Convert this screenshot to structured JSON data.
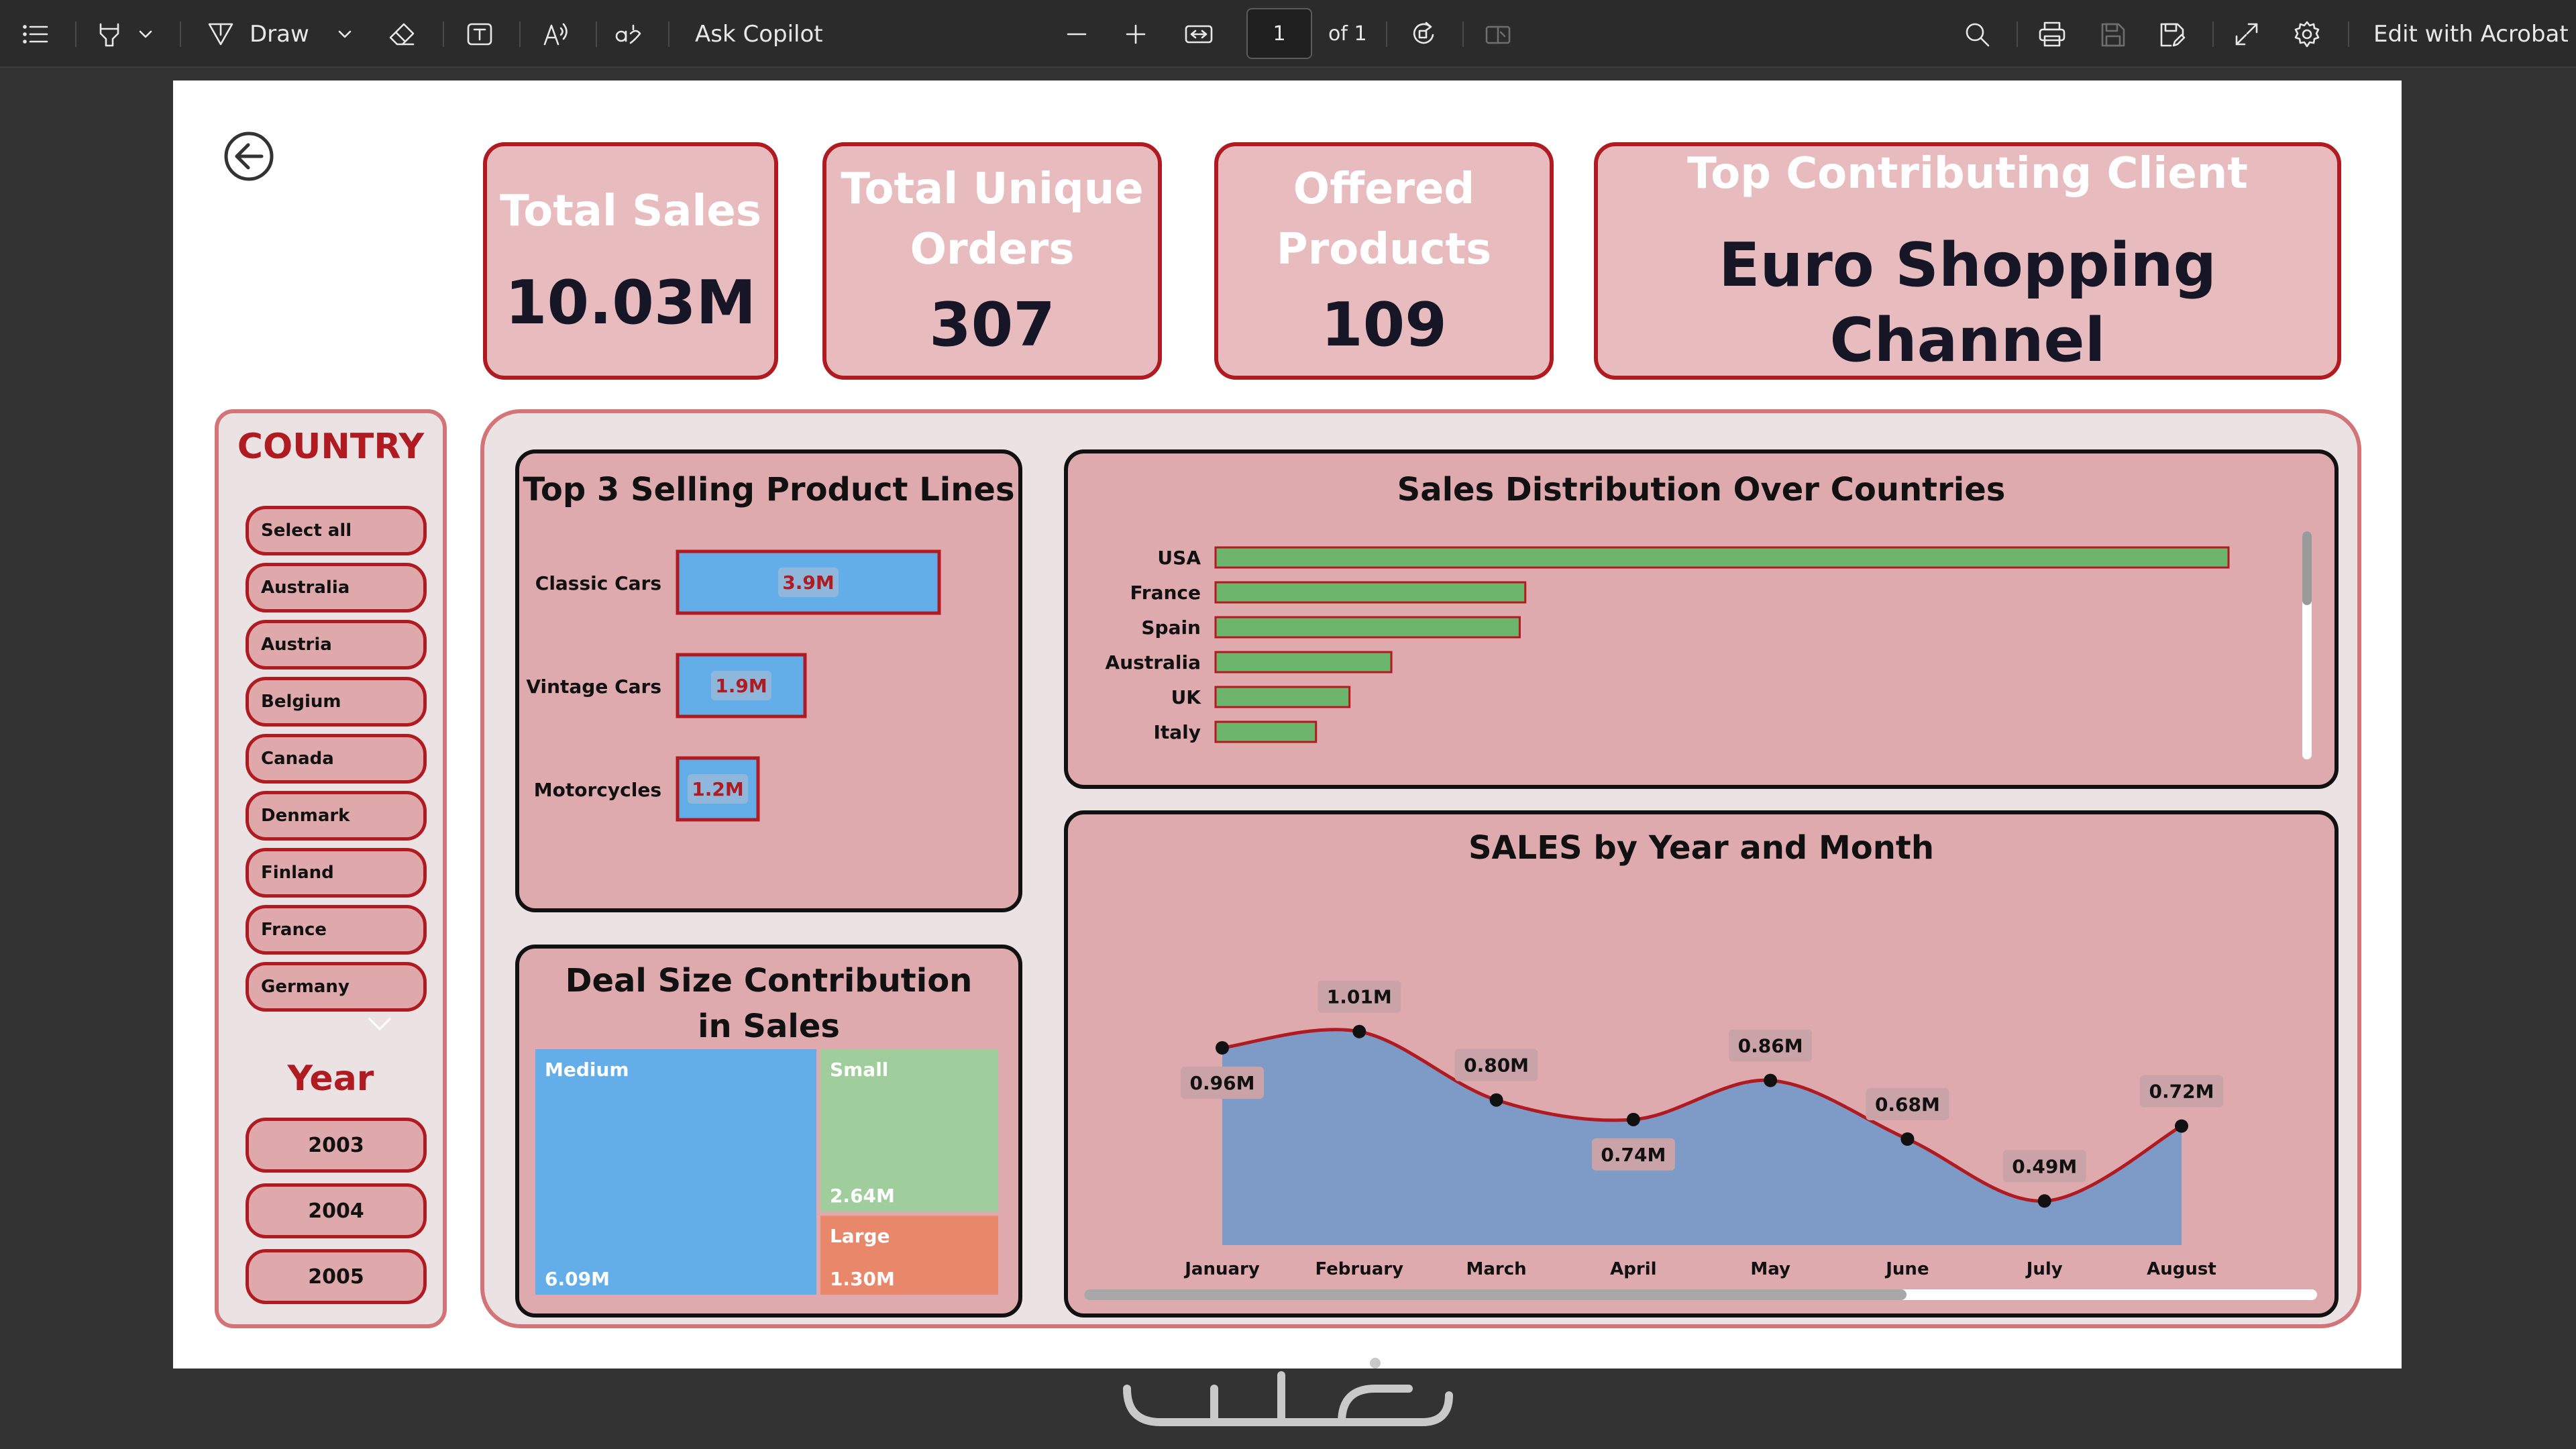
{
  "toolbar": {
    "draw_label": "Draw",
    "copilot_label": "Ask Copilot",
    "page_number": "1",
    "page_of": "of 1",
    "edit_label": "Edit with Acrobat"
  },
  "kpis": {
    "total_sales": {
      "label": "Total Sales",
      "value": "10.03M"
    },
    "unique_orders": {
      "label": "Total Unique Orders",
      "value": "307"
    },
    "offered_products": {
      "label": "Offered Products",
      "value": "109"
    },
    "top_client": {
      "label": "Top Contributing Client",
      "value": "Euro Shopping Channel"
    }
  },
  "country_slicer": {
    "title": "COUNTRY",
    "items": [
      "Select all",
      "Australia",
      "Austria",
      "Belgium",
      "Canada",
      "Denmark",
      "Finland",
      "France",
      "Germany"
    ]
  },
  "year_slicer": {
    "title": "Year",
    "items": [
      "2003",
      "2004",
      "2005"
    ]
  },
  "colors": {
    "accent_red": "#b01b22",
    "card_pink": "#dfaaad",
    "bar_blue": "#63ade9",
    "bar_green": "#6db46d",
    "area_blue": "#7d9bc6",
    "treemap_small": "#9fcd9c",
    "treemap_large": "#e8876a"
  },
  "chart_data": [
    {
      "id": "top_product_lines",
      "type": "bar",
      "orientation": "horizontal",
      "title": "Top 3 Selling Product Lines",
      "categories": [
        "Classic Cars",
        "Vintage Cars",
        "Motorcycles"
      ],
      "values": [
        3.9,
        1.9,
        1.2
      ],
      "value_labels": [
        "3.9M",
        "1.9M",
        "1.2M"
      ],
      "xlim": [
        0,
        3.9
      ]
    },
    {
      "id": "sales_by_country",
      "type": "bar",
      "orientation": "horizontal",
      "title": "Sales Distribution Over Countries",
      "categories": [
        "USA",
        "France",
        "Spain",
        "Australia",
        "UK",
        "Italy"
      ],
      "values": [
        3.63,
        1.11,
        1.09,
        0.63,
        0.48,
        0.36
      ],
      "xlim": [
        0,
        3.63
      ]
    },
    {
      "id": "deal_size",
      "type": "treemap",
      "title": "Deal Size Contribution in Sales",
      "categories": [
        "Medium",
        "Small",
        "Large"
      ],
      "values": [
        6.09,
        2.64,
        1.3
      ],
      "value_labels": [
        "6.09M",
        "2.64M",
        "1.30M"
      ]
    },
    {
      "id": "sales_by_month",
      "type": "area",
      "title": "SALES by Year and Month",
      "categories": [
        "January",
        "February",
        "March",
        "April",
        "May",
        "June",
        "July",
        "August"
      ],
      "values": [
        0.96,
        1.01,
        0.8,
        0.74,
        0.86,
        0.68,
        0.49,
        0.72
      ],
      "value_labels": [
        "0.96M",
        "1.01M",
        "0.80M",
        "0.74M",
        "0.86M",
        "0.68M",
        "0.49M",
        "0.72M"
      ],
      "ylim": [
        0.4,
        1.1
      ]
    }
  ]
}
